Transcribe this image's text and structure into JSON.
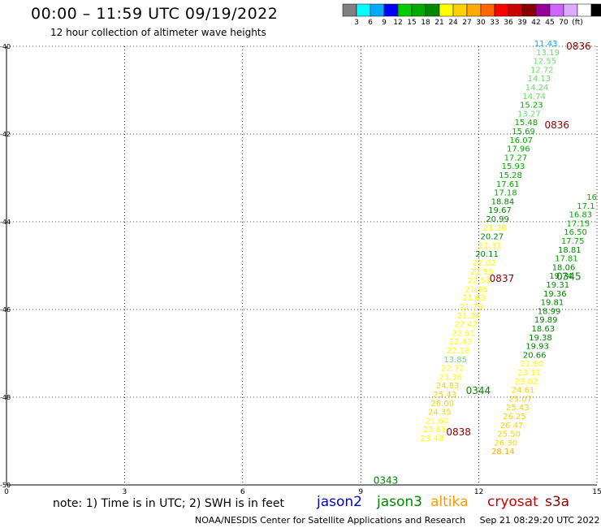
{
  "header": {
    "title": "00:00 – 11:59 UTC 09/19/2022",
    "subtitle": "12 hour collection of altimeter wave heights"
  },
  "colorbar": {
    "colors": [
      "#808080",
      "#00ffff",
      "#00aaff",
      "#0000ff",
      "#00cc00",
      "#00aa00",
      "#008800",
      "#ffff00",
      "#ffd000",
      "#ffaa00",
      "#ff6600",
      "#ff0000",
      "#cc0000",
      "#880000",
      "#990099",
      "#cc66ff",
      "#ddaaff",
      "#ffffff",
      "#000000"
    ],
    "labels": [
      "3",
      "6",
      "9",
      "12",
      "15",
      "18",
      "21",
      "24",
      "27",
      "30",
      "33",
      "36",
      "39",
      "42",
      "45",
      "70",
      "(ft)"
    ]
  },
  "legend": {
    "note": "note: 1) Time is in UTC; 2) SWH is in feet",
    "satellites": [
      {
        "name": "jason2",
        "color": "#0000cc"
      },
      {
        "name": "jason3",
        "color": "#008800"
      },
      {
        "name": "altika",
        "color": "#ff9900"
      },
      {
        "name": "cryosat",
        "color": "#cc0000"
      },
      {
        "name": "s3a",
        "color": "#880000"
      }
    ]
  },
  "footer": {
    "credit": "NOAA/NESDIS Center for Satellite Applications and Research",
    "timestamp": "Sep 21 08:29:20 UTC 2022"
  },
  "chart_data": {
    "type": "scatter",
    "title": "00:00 – 11:59 UTC 09/19/2022",
    "subtitle": "12 hour collection of altimeter wave heights",
    "xlim": [
      0,
      15
    ],
    "ylim": [
      -50,
      -40
    ],
    "x_ticks": [
      0,
      3,
      6,
      9,
      12,
      15
    ],
    "y_ticks": [
      -40,
      -42,
      -44,
      -46,
      -48,
      -50
    ],
    "grid": true,
    "value_colors": {
      "lt9": "#0000ff",
      "9to12": "#00aaff",
      "12to15": "#66dd66",
      "15to18": "#00aa00",
      "18to21": "#008800",
      "21to24": "#ffff00",
      "24to27": "#ffd000",
      "27to30": "#ffaa00"
    },
    "time_labels": [
      {
        "text": "0836",
        "x": 14.85,
        "y": -40.0,
        "color": "#880000"
      },
      {
        "text": "0836",
        "x": 14.3,
        "y": -41.8,
        "color": "#880000"
      },
      {
        "text": "0837",
        "x": 12.9,
        "y": -45.3,
        "color": "#880000"
      },
      {
        "text": "0345",
        "x": 14.6,
        "y": -45.25,
        "color": "#008800"
      },
      {
        "text": "0344",
        "x": 12.3,
        "y": -47.85,
        "color": "#008800"
      },
      {
        "text": "0838",
        "x": 11.8,
        "y": -48.8,
        "color": "#880000"
      },
      {
        "text": "0343",
        "x": 9.95,
        "y": -49.9,
        "color": "#008800"
      }
    ],
    "series": [
      {
        "name": "s3a",
        "points": [
          {
            "x": 14.0,
            "y": -40.0,
            "v": "11.43"
          },
          {
            "x": 14.05,
            "y": -40.2,
            "v": "13.19"
          },
          {
            "x": 13.97,
            "y": -40.4,
            "v": "12.55"
          },
          {
            "x": 13.9,
            "y": -40.6,
            "v": "12.72"
          },
          {
            "x": 13.83,
            "y": -40.8,
            "v": "14.13"
          },
          {
            "x": 13.77,
            "y": -41.0,
            "v": "14.24"
          },
          {
            "x": 13.7,
            "y": -41.2,
            "v": "14.74"
          },
          {
            "x": 13.63,
            "y": -41.4,
            "v": "15.23"
          },
          {
            "x": 13.57,
            "y": -41.6,
            "v": "13.27"
          },
          {
            "x": 13.5,
            "y": -41.8,
            "v": "15.48"
          },
          {
            "x": 13.43,
            "y": -42.0,
            "v": "15.69"
          },
          {
            "x": 13.37,
            "y": -42.2,
            "v": "16.07"
          },
          {
            "x": 13.3,
            "y": -42.4,
            "v": "17.96"
          },
          {
            "x": 13.23,
            "y": -42.6,
            "v": "17.27"
          },
          {
            "x": 13.17,
            "y": -42.8,
            "v": "15.93"
          },
          {
            "x": 13.1,
            "y": -43.0,
            "v": "15.28"
          },
          {
            "x": 13.03,
            "y": -43.2,
            "v": "17.61"
          },
          {
            "x": 12.97,
            "y": -43.4,
            "v": "17.18"
          },
          {
            "x": 12.9,
            "y": -43.6,
            "v": "18.84"
          },
          {
            "x": 12.83,
            "y": -43.8,
            "v": "19.67"
          },
          {
            "x": 12.77,
            "y": -44.0,
            "v": "20.99"
          },
          {
            "x": 12.7,
            "y": -44.2,
            "v": "21.36"
          },
          {
            "x": 12.63,
            "y": -44.4,
            "v": "20.27"
          },
          {
            "x": 12.57,
            "y": -44.6,
            "v": "21.31"
          },
          {
            "x": 12.5,
            "y": -44.8,
            "v": "20.11"
          },
          {
            "x": 12.43,
            "y": -45.0,
            "v": "22.02"
          },
          {
            "x": 12.37,
            "y": -45.2,
            "v": "22.59"
          },
          {
            "x": 12.3,
            "y": -45.4,
            "v": "22.53"
          },
          {
            "x": 12.23,
            "y": -45.6,
            "v": "21.96"
          },
          {
            "x": 12.17,
            "y": -45.8,
            "v": "21.63"
          },
          {
            "x": 12.1,
            "y": -46.0,
            "v": "21.79"
          },
          {
            "x": 12.03,
            "y": -46.2,
            "v": "21.34"
          },
          {
            "x": 11.97,
            "y": -46.4,
            "v": "22.42"
          },
          {
            "x": 11.9,
            "y": -46.6,
            "v": "22.61"
          },
          {
            "x": 11.83,
            "y": -46.8,
            "v": "22.43"
          },
          {
            "x": 11.77,
            "y": -47.0,
            "v": "22.18"
          },
          {
            "x": 11.7,
            "y": -47.2,
            "v": "13.85"
          },
          {
            "x": 11.63,
            "y": -47.4,
            "v": "22.72"
          },
          {
            "x": 11.57,
            "y": -47.6,
            "v": "23.36"
          },
          {
            "x": 11.5,
            "y": -47.8,
            "v": "24.83"
          },
          {
            "x": 11.43,
            "y": -48.0,
            "v": "25.43"
          },
          {
            "x": 11.37,
            "y": -48.2,
            "v": "26.00"
          },
          {
            "x": 11.3,
            "y": -48.4,
            "v": "24.35"
          },
          {
            "x": 11.23,
            "y": -48.6,
            "v": "21.60"
          },
          {
            "x": 11.17,
            "y": -48.8,
            "v": "23.61"
          },
          {
            "x": 11.1,
            "y": -49.0,
            "v": "23.48"
          }
        ]
      },
      {
        "name": "jason3",
        "points": [
          {
            "x": 15.0,
            "y": -43.5,
            "v": "16"
          },
          {
            "x": 14.95,
            "y": -43.7,
            "v": "17.1"
          },
          {
            "x": 14.88,
            "y": -43.9,
            "v": "16.83"
          },
          {
            "x": 14.82,
            "y": -44.1,
            "v": "17.15"
          },
          {
            "x": 14.75,
            "y": -44.3,
            "v": "16.50"
          },
          {
            "x": 14.68,
            "y": -44.5,
            "v": "17.75"
          },
          {
            "x": 14.6,
            "y": -44.7,
            "v": "18.81"
          },
          {
            "x": 14.52,
            "y": -44.9,
            "v": "17.81"
          },
          {
            "x": 14.45,
            "y": -45.1,
            "v": "18.06"
          },
          {
            "x": 14.38,
            "y": -45.3,
            "v": "19.74"
          },
          {
            "x": 14.3,
            "y": -45.5,
            "v": "19.31"
          },
          {
            "x": 14.23,
            "y": -45.7,
            "v": "19.36"
          },
          {
            "x": 14.16,
            "y": -45.9,
            "v": "19.81"
          },
          {
            "x": 14.08,
            "y": -46.1,
            "v": "18.99"
          },
          {
            "x": 14.0,
            "y": -46.3,
            "v": "19.89"
          },
          {
            "x": 13.93,
            "y": -46.5,
            "v": "18.63"
          },
          {
            "x": 13.86,
            "y": -46.7,
            "v": "19.38"
          },
          {
            "x": 13.78,
            "y": -46.9,
            "v": "19.93"
          },
          {
            "x": 13.71,
            "y": -47.1,
            "v": "20.66"
          },
          {
            "x": 13.64,
            "y": -47.3,
            "v": "21.60"
          },
          {
            "x": 13.57,
            "y": -47.5,
            "v": "23.11"
          },
          {
            "x": 13.5,
            "y": -47.7,
            "v": "23.02"
          },
          {
            "x": 13.42,
            "y": -47.9,
            "v": "24.61"
          },
          {
            "x": 13.35,
            "y": -48.1,
            "v": "25.07"
          },
          {
            "x": 13.28,
            "y": -48.3,
            "v": "25.43"
          },
          {
            "x": 13.2,
            "y": -48.5,
            "v": "26.25"
          },
          {
            "x": 13.13,
            "y": -48.7,
            "v": "26.47"
          },
          {
            "x": 13.06,
            "y": -48.9,
            "v": "25.50"
          },
          {
            "x": 12.98,
            "y": -49.1,
            "v": "26.30"
          },
          {
            "x": 12.91,
            "y": -49.3,
            "v": "28.14"
          }
        ]
      }
    ]
  }
}
